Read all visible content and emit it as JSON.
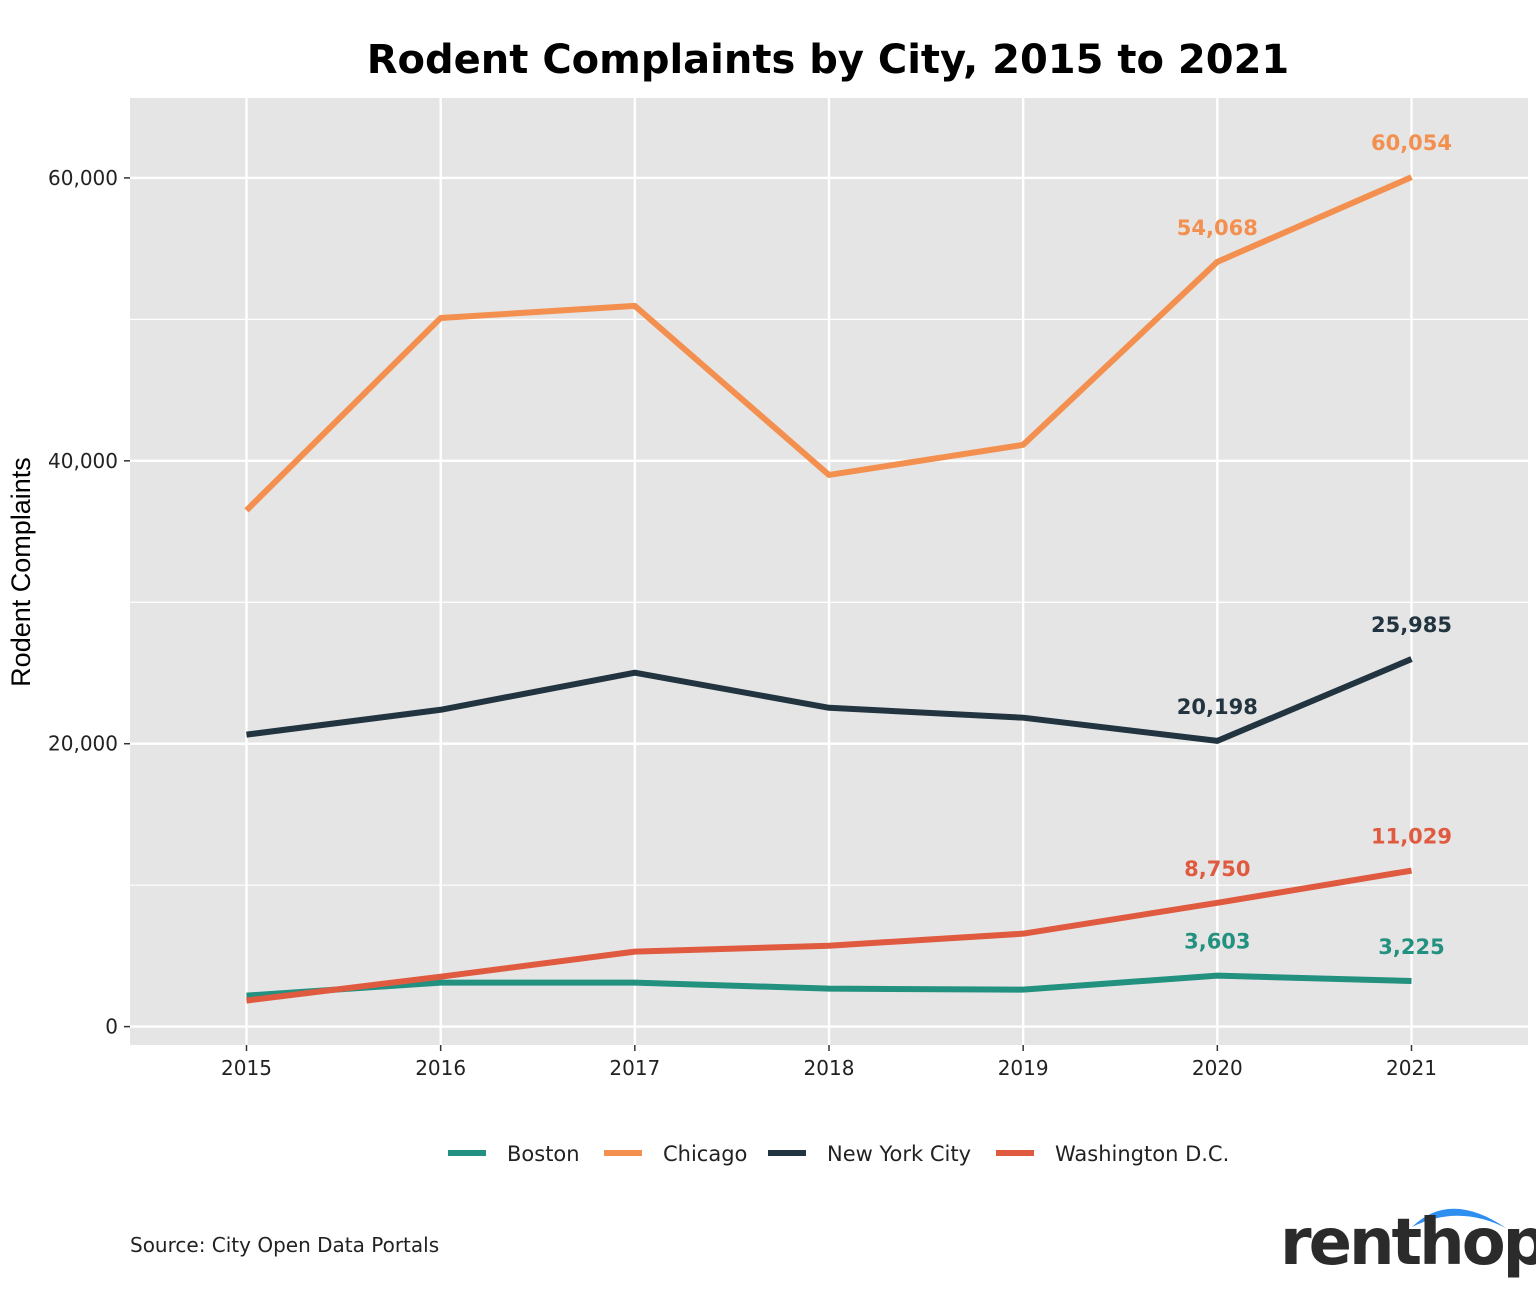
{
  "chart_data": {
    "type": "line",
    "title": "Rodent Complaints by City, 2015 to 2021",
    "xlabel": "",
    "ylabel": "Rodent Complaints",
    "x": [
      2015,
      2016,
      2017,
      2018,
      2019,
      2020,
      2021
    ],
    "x_tick_labels": [
      "2015",
      "2016",
      "2017",
      "2018",
      "2019",
      "2020",
      "2021"
    ],
    "y_ticks": [
      0,
      20000,
      40000,
      60000
    ],
    "y_tick_labels": [
      "0",
      "20,000",
      "40,000",
      "60,000"
    ],
    "y_minor_ticks": [
      10000,
      30000,
      50000
    ],
    "xlim": [
      2014.4,
      2021.6
    ],
    "ylim": [
      -1300,
      65650
    ],
    "grid": true,
    "legend_position": "bottom",
    "series": [
      {
        "name": "Boston",
        "color": "#23917f",
        "values": [
          2190,
          3110,
          3110,
          2685,
          2615,
          3603,
          3225
        ],
        "labels": [
          null,
          null,
          null,
          null,
          null,
          "3,603",
          "3,225"
        ]
      },
      {
        "name": "Chicago",
        "color": "#f4904f",
        "values": [
          36500,
          50100,
          50950,
          39000,
          41130,
          54068,
          60054
        ],
        "labels": [
          null,
          null,
          null,
          null,
          null,
          "54,068",
          "60,054"
        ]
      },
      {
        "name": "New York City",
        "color": "#22343f",
        "values": [
          20640,
          22400,
          25020,
          22540,
          21840,
          20198,
          25985
        ],
        "labels": [
          null,
          null,
          null,
          null,
          null,
          "20,198",
          "25,985"
        ]
      },
      {
        "name": "Washington D.C.",
        "color": "#e05a40",
        "values": [
          1840,
          3530,
          5300,
          5720,
          6570,
          8750,
          11029
        ],
        "labels": [
          null,
          null,
          null,
          null,
          null,
          "8,750",
          "11,029"
        ]
      }
    ],
    "source": "Source: City Open Data Portals"
  },
  "logo": {
    "text": "renthop",
    "arc_color": "#2f8ff0"
  }
}
